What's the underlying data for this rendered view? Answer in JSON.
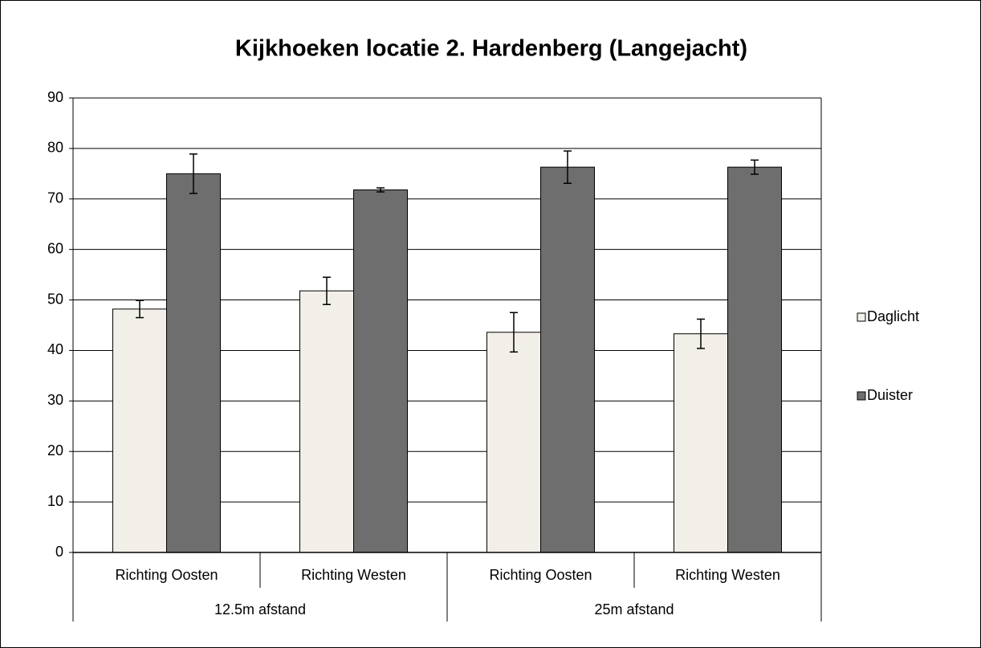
{
  "chart_data": {
    "type": "bar",
    "title": "Kijkhoeken locatie 2. Hardenberg (Langejacht)",
    "groups": [
      {
        "name": "12.5m afstand",
        "categories": [
          "Richting Oosten",
          "Richting Westen"
        ]
      },
      {
        "name": "25m afstand",
        "categories": [
          "Richting Oosten",
          "Richting Westen"
        ]
      }
    ],
    "series": [
      {
        "name": "Daglicht",
        "color": "#f2efe9",
        "values": [
          48.2,
          51.8,
          43.6,
          43.3
        ],
        "errors": [
          1.7,
          2.7,
          3.9,
          2.9
        ]
      },
      {
        "name": "Duister",
        "color": "#6e6e6e",
        "values": [
          75.0,
          71.8,
          76.3,
          76.3
        ],
        "errors": [
          3.9,
          0.4,
          3.2,
          1.4
        ]
      }
    ],
    "ylim": [
      0,
      90
    ],
    "yticks": [
      0,
      10,
      20,
      30,
      40,
      50,
      60,
      70,
      80,
      90
    ],
    "grid": true,
    "legend": "right"
  }
}
